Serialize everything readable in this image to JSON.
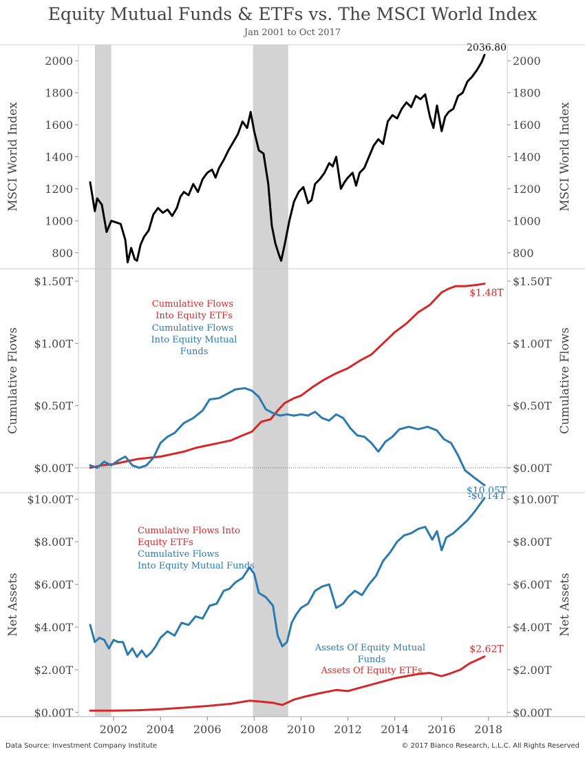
{
  "title": "Equity Mutual Funds & ETFs vs. The MSCI World Index",
  "subtitle": "Jan 2001 to Oct 2017",
  "footer": {
    "source": "Data Source: Investment Company Institute",
    "copyright": "© 2017 Bianco Research, L.L.C. All Rights Reserved"
  },
  "colors": {
    "etf": "#d62728",
    "mutual": "#2a7ab0",
    "index": "#000000",
    "recession": "#d3d3d3"
  },
  "chart_data": [
    {
      "type": "line",
      "title": "",
      "ylabel": "MSCI World Index",
      "ylim": [
        700,
        2100
      ],
      "xlim": [
        2000.5,
        2018.8
      ],
      "yticks": [
        800,
        1000,
        1200,
        1400,
        1600,
        1800,
        2000
      ],
      "ytick_labels": [
        "800",
        "1000",
        "1200",
        "1400",
        "1600",
        "1800",
        "2000"
      ],
      "xticks": [
        2002,
        2004,
        2006,
        2008,
        2010,
        2012,
        2014,
        2016,
        2018
      ],
      "recessions": [
        [
          2001.2,
          2001.9
        ],
        [
          2007.95,
          2009.45
        ]
      ],
      "series": [
        {
          "color": "#000000",
          "x": [
            2001.0,
            2001.2,
            2001.3,
            2001.5,
            2001.7,
            2001.9,
            2002.1,
            2002.3,
            2002.5,
            2002.6,
            2002.75,
            2002.9,
            2003.0,
            2003.15,
            2003.3,
            2003.5,
            2003.7,
            2003.9,
            2004.1,
            2004.3,
            2004.5,
            2004.7,
            2004.85,
            2005.0,
            2005.2,
            2005.4,
            2005.6,
            2005.8,
            2006.0,
            2006.2,
            2006.35,
            2006.5,
            2006.7,
            2006.9,
            2007.1,
            2007.3,
            2007.5,
            2007.7,
            2007.85,
            2008.0,
            2008.2,
            2008.4,
            2008.6,
            2008.75,
            2008.9,
            2009.05,
            2009.15,
            2009.3,
            2009.5,
            2009.7,
            2009.9,
            2010.1,
            2010.3,
            2010.45,
            2010.6,
            2010.8,
            2011.0,
            2011.2,
            2011.35,
            2011.5,
            2011.7,
            2011.85,
            2012.0,
            2012.2,
            2012.35,
            2012.5,
            2012.7,
            2012.9,
            2013.1,
            2013.3,
            2013.5,
            2013.7,
            2013.9,
            2014.1,
            2014.3,
            2014.5,
            2014.7,
            2014.9,
            2015.1,
            2015.3,
            2015.5,
            2015.65,
            2015.8,
            2016.0,
            2016.15,
            2016.3,
            2016.5,
            2016.7,
            2016.9,
            2017.1,
            2017.3,
            2017.5,
            2017.7,
            2017.83
          ],
          "y": [
            1240,
            1060,
            1140,
            1100,
            930,
            1000,
            990,
            980,
            880,
            740,
            830,
            760,
            750,
            850,
            900,
            940,
            1040,
            1080,
            1050,
            1070,
            1030,
            1080,
            1150,
            1180,
            1160,
            1230,
            1180,
            1260,
            1300,
            1320,
            1270,
            1330,
            1380,
            1440,
            1490,
            1540,
            1620,
            1580,
            1680,
            1560,
            1440,
            1420,
            1230,
            970,
            860,
            790,
            750,
            850,
            1000,
            1120,
            1180,
            1210,
            1110,
            1130,
            1230,
            1260,
            1300,
            1360,
            1340,
            1400,
            1200,
            1240,
            1270,
            1300,
            1220,
            1300,
            1330,
            1400,
            1470,
            1510,
            1480,
            1620,
            1660,
            1640,
            1700,
            1740,
            1710,
            1780,
            1760,
            1790,
            1650,
            1580,
            1720,
            1560,
            1650,
            1680,
            1700,
            1780,
            1800,
            1870,
            1900,
            1940,
            1990,
            2036.8
          ]
        }
      ],
      "annotations": [
        {
          "label": "2036.80",
          "x": 2017.83,
          "y": 2036.8,
          "color": "#000000"
        }
      ]
    },
    {
      "type": "line",
      "title": "",
      "ylabel": "Cumulative Flows",
      "ylim": [
        -0.2,
        1.6
      ],
      "xlim": [
        2000.5,
        2018.8
      ],
      "yticks": [
        0,
        0.5,
        1.0,
        1.5
      ],
      "ytick_labels": [
        "$0.00T",
        "$0.50T",
        "$1.00T",
        "$1.50T"
      ],
      "zero_line": true,
      "recessions": [
        [
          2001.2,
          2001.9
        ],
        [
          2007.95,
          2009.45
        ]
      ],
      "legend": [
        "Cumulative Flows Into Equity ETFs",
        "Cumulative Flows Into Equity Mutual Funds"
      ],
      "series": [
        {
          "name": "Cumulative Flows Into Equity ETFs",
          "color": "#d62728",
          "x": [
            2001.0,
            2001.5,
            2002.0,
            2002.5,
            2003.0,
            2003.5,
            2004.0,
            2004.5,
            2005.0,
            2005.5,
            2006.0,
            2006.5,
            2007.0,
            2007.5,
            2007.9,
            2008.3,
            2008.7,
            2009.0,
            2009.3,
            2009.7,
            2010.0,
            2010.5,
            2011.0,
            2011.5,
            2012.0,
            2012.5,
            2013.0,
            2013.5,
            2014.0,
            2014.5,
            2015.0,
            2015.5,
            2016.0,
            2016.3,
            2016.6,
            2017.0,
            2017.5,
            2017.83
          ],
          "y": [
            0.0,
            0.02,
            0.03,
            0.05,
            0.07,
            0.08,
            0.09,
            0.11,
            0.13,
            0.16,
            0.18,
            0.2,
            0.22,
            0.26,
            0.29,
            0.37,
            0.39,
            0.46,
            0.52,
            0.56,
            0.58,
            0.65,
            0.71,
            0.76,
            0.8,
            0.86,
            0.91,
            1.0,
            1.09,
            1.16,
            1.25,
            1.31,
            1.41,
            1.44,
            1.46,
            1.46,
            1.47,
            1.48
          ]
        },
        {
          "name": "Cumulative Flows Into Equity Mutual Funds",
          "color": "#2a7ab0",
          "x": [
            2001.0,
            2001.3,
            2001.6,
            2001.9,
            2002.2,
            2002.5,
            2002.8,
            2003.1,
            2003.4,
            2003.7,
            2004.0,
            2004.3,
            2004.6,
            2005.0,
            2005.4,
            2005.8,
            2006.1,
            2006.5,
            2006.9,
            2007.2,
            2007.6,
            2007.9,
            2008.2,
            2008.5,
            2008.8,
            2009.1,
            2009.4,
            2009.7,
            2010.0,
            2010.3,
            2010.6,
            2010.9,
            2011.2,
            2011.5,
            2011.8,
            2012.1,
            2012.4,
            2012.7,
            2013.0,
            2013.3,
            2013.6,
            2013.9,
            2014.2,
            2014.6,
            2015.0,
            2015.4,
            2015.8,
            2016.1,
            2016.4,
            2016.7,
            2017.0,
            2017.4,
            2017.83
          ],
          "y": [
            0.02,
            0.0,
            0.05,
            0.02,
            0.06,
            0.09,
            0.02,
            0.0,
            0.02,
            0.08,
            0.2,
            0.25,
            0.28,
            0.36,
            0.4,
            0.46,
            0.55,
            0.56,
            0.6,
            0.63,
            0.64,
            0.62,
            0.57,
            0.47,
            0.44,
            0.42,
            0.43,
            0.42,
            0.43,
            0.42,
            0.45,
            0.4,
            0.38,
            0.43,
            0.4,
            0.32,
            0.26,
            0.25,
            0.2,
            0.13,
            0.21,
            0.25,
            0.31,
            0.33,
            0.31,
            0.33,
            0.3,
            0.23,
            0.2,
            0.1,
            -0.02,
            -0.08,
            -0.14
          ]
        }
      ],
      "annotations": [
        {
          "label": "$1.48T",
          "x": 2017.83,
          "y": 1.48,
          "color": "#d62728"
        },
        {
          "label": "-$0.14T",
          "x": 2017.83,
          "y": -0.14,
          "color": "#2a7ab0"
        }
      ]
    },
    {
      "type": "line",
      "title": "",
      "ylabel": "Net Assets",
      "ylim": [
        -0.2,
        10.3
      ],
      "xlim": [
        2000.5,
        2018.8
      ],
      "yticks": [
        0,
        2,
        4,
        6,
        8,
        10
      ],
      "ytick_labels": [
        "$0.00T",
        "$2.00T",
        "$4.00T",
        "$6.00T",
        "$8.00T",
        "$10.00T"
      ],
      "xticks": [
        2002,
        2004,
        2006,
        2008,
        2010,
        2012,
        2014,
        2016,
        2018
      ],
      "recessions": [
        [
          2001.2,
          2001.9
        ],
        [
          2007.95,
          2009.45
        ]
      ],
      "legend": [
        "Cumulative Flows Into Equity ETFs",
        "Cumulative Flows Into Equity Mutual Funds",
        "Assets Of Equity Mutual Funds",
        "Assets Of Equity ETFs"
      ],
      "series": [
        {
          "name": "Assets Of Equity Mutual Funds",
          "color": "#2a7ab0",
          "x": [
            2001.0,
            2001.2,
            2001.4,
            2001.6,
            2001.8,
            2002.0,
            2002.2,
            2002.4,
            2002.6,
            2002.8,
            2003.0,
            2003.2,
            2003.4,
            2003.6,
            2003.8,
            2004.0,
            2004.3,
            2004.6,
            2004.9,
            2005.2,
            2005.5,
            2005.8,
            2006.1,
            2006.4,
            2006.7,
            2006.95,
            2007.2,
            2007.5,
            2007.8,
            2008.0,
            2008.2,
            2008.5,
            2008.8,
            2009.0,
            2009.2,
            2009.4,
            2009.6,
            2009.8,
            2010.0,
            2010.3,
            2010.6,
            2010.9,
            2011.2,
            2011.5,
            2011.8,
            2012.0,
            2012.3,
            2012.6,
            2012.9,
            2013.2,
            2013.5,
            2013.8,
            2014.1,
            2014.4,
            2014.7,
            2015.0,
            2015.3,
            2015.6,
            2015.8,
            2016.0,
            2016.2,
            2016.5,
            2016.8,
            2017.1,
            2017.4,
            2017.83
          ],
          "y": [
            4.1,
            3.3,
            3.5,
            3.4,
            3.0,
            3.4,
            3.3,
            3.3,
            2.7,
            3.0,
            2.6,
            2.9,
            2.6,
            2.8,
            3.1,
            3.5,
            3.8,
            3.6,
            4.2,
            4.1,
            4.5,
            4.4,
            5.0,
            5.1,
            5.7,
            5.8,
            6.1,
            6.3,
            6.8,
            6.5,
            5.6,
            5.4,
            5.0,
            3.6,
            3.1,
            3.3,
            4.2,
            4.6,
            4.9,
            5.1,
            5.7,
            5.9,
            6.0,
            4.9,
            5.1,
            5.4,
            5.7,
            5.5,
            6.0,
            6.4,
            7.1,
            7.5,
            8.0,
            8.3,
            8.4,
            8.6,
            8.7,
            8.1,
            8.5,
            7.6,
            8.2,
            8.4,
            8.7,
            9.0,
            9.4,
            10.05
          ]
        },
        {
          "name": "Assets Of Equity ETFs",
          "color": "#d62728",
          "x": [
            2001.0,
            2002.0,
            2003.0,
            2004.0,
            2005.0,
            2006.0,
            2007.0,
            2007.8,
            2008.3,
            2008.8,
            2009.2,
            2009.7,
            2010.2,
            2010.8,
            2011.5,
            2012.0,
            2012.5,
            2013.0,
            2013.5,
            2014.0,
            2014.5,
            2015.0,
            2015.5,
            2015.8,
            2016.0,
            2016.3,
            2016.8,
            2017.2,
            2017.5,
            2017.83
          ],
          "y": [
            0.08,
            0.08,
            0.1,
            0.15,
            0.22,
            0.3,
            0.4,
            0.55,
            0.5,
            0.45,
            0.35,
            0.6,
            0.75,
            0.9,
            1.05,
            1.0,
            1.15,
            1.3,
            1.45,
            1.6,
            1.7,
            1.8,
            1.85,
            1.75,
            1.7,
            1.8,
            2.0,
            2.3,
            2.45,
            2.62
          ]
        }
      ],
      "annotations": [
        {
          "label": "$10.05T",
          "x": 2017.83,
          "y": 10.05,
          "color": "#2a7ab0"
        },
        {
          "label": "$2.62T",
          "x": 2017.83,
          "y": 2.62,
          "color": "#d62728"
        }
      ]
    }
  ]
}
